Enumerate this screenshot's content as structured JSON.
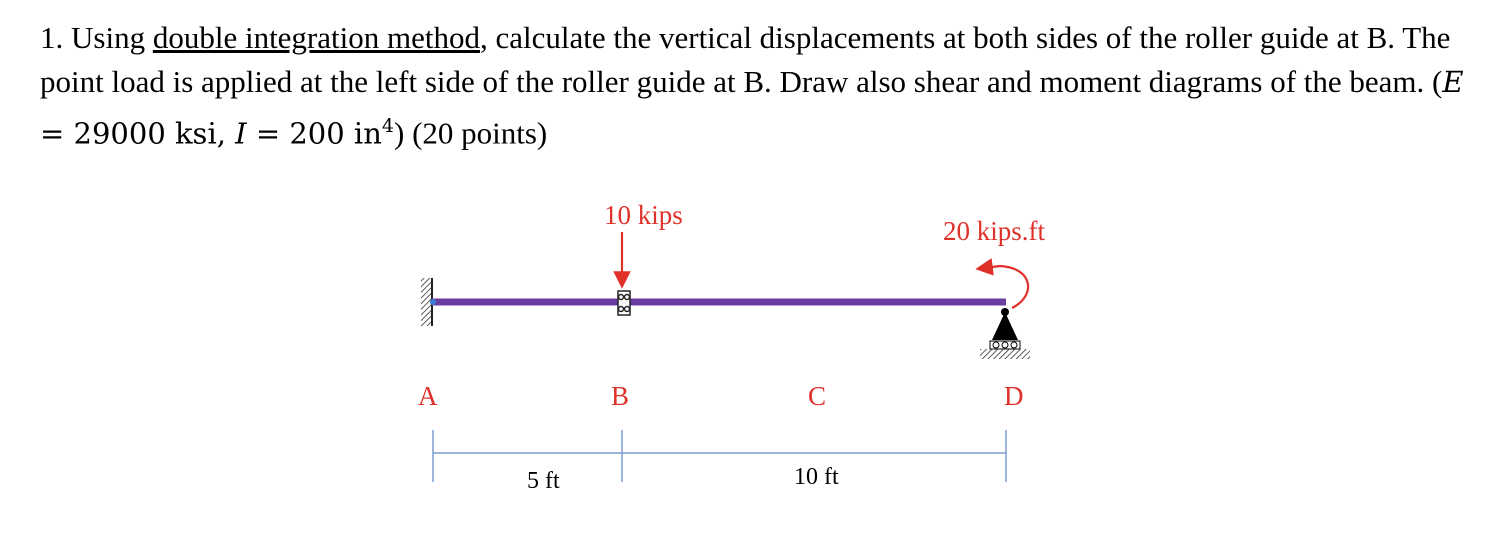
{
  "problem": {
    "number": "1.",
    "pre": "Using",
    "method": "double integration method",
    "body1": ", calculate the vertical displacements at both sides of the roller guide at B. The point load is applied at the left side of the roller guide at B. Draw also shear and moment diagrams of the beam. (",
    "e_sym": "E",
    "e_val": " = 29000 ksi, ",
    "i_sym": "I",
    "i_val": " = 200 in",
    "i_exp": "4",
    "close": ")",
    "points": " (20 points)"
  },
  "diagram": {
    "load_label": "10 kips",
    "moment_label": "20 kips.ft",
    "nodes": [
      "A",
      "B",
      "C",
      "D"
    ],
    "dim_ab": "5 ft",
    "dim_bd": "10 ft",
    "colors": {
      "beam": "#6a3ea1",
      "labels": "#e0302a",
      "dimension": "#7f9bd0",
      "support": "#000000"
    }
  }
}
